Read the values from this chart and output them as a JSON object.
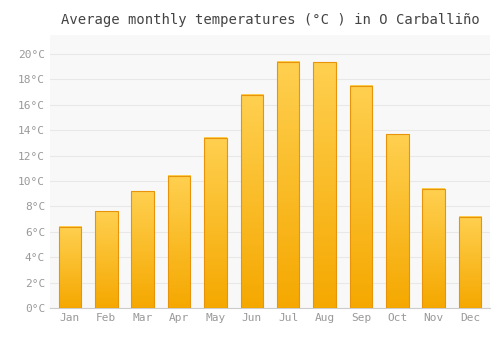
{
  "title": "Average monthly temperatures (°C ) in O Carballiño",
  "months": [
    "Jan",
    "Feb",
    "Mar",
    "Apr",
    "May",
    "Jun",
    "Jul",
    "Aug",
    "Sep",
    "Oct",
    "Nov",
    "Dec"
  ],
  "values": [
    6.4,
    7.6,
    9.2,
    10.4,
    13.4,
    16.8,
    19.4,
    19.35,
    17.5,
    13.7,
    9.4,
    7.2
  ],
  "bar_color": "#FFA500",
  "bar_top_color": "#FFD040",
  "bar_border_color": "#E8940A",
  "background_color": "#ffffff",
  "plot_bg_color": "#f8f8f8",
  "grid_color": "#e8e8e8",
  "yticks": [
    0,
    2,
    4,
    6,
    8,
    10,
    12,
    14,
    16,
    18,
    20
  ],
  "ylim": [
    0,
    21.5
  ],
  "title_fontsize": 10,
  "tick_fontsize": 8,
  "tick_color": "#999999",
  "title_color": "#444444"
}
